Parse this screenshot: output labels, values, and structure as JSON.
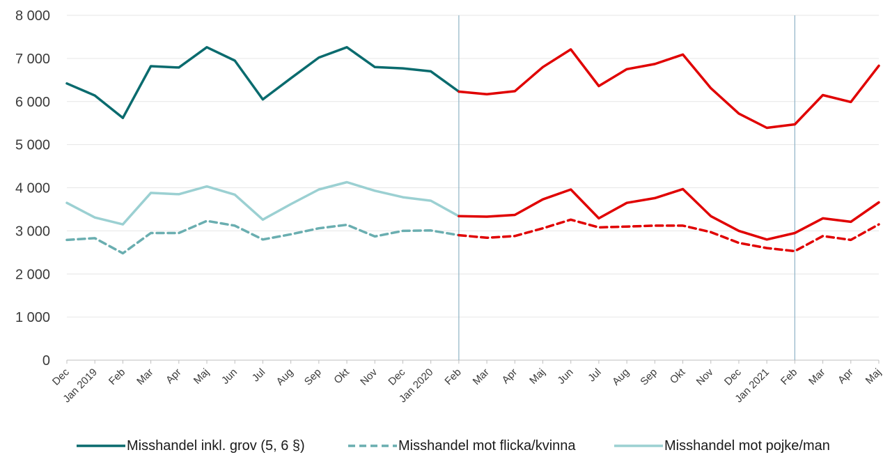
{
  "chart_data": {
    "type": "line",
    "categories": [
      "Dec",
      "Jan 2019",
      "Feb",
      "Mar",
      "Apr",
      "Maj",
      "Jun",
      "Jul",
      "Aug",
      "Sep",
      "Okt",
      "Nov",
      "Dec",
      "Jan 2020",
      "Feb",
      "Mar",
      "Apr",
      "Maj",
      "Jun",
      "Jul",
      "Aug",
      "Sep",
      "Okt",
      "Nov",
      "Dec",
      "Jan 2021",
      "Feb",
      "Mar",
      "Apr",
      "Maj"
    ],
    "ylim": [
      0,
      8000
    ],
    "yticks": [
      0,
      1000,
      2000,
      3000,
      4000,
      5000,
      6000,
      7000,
      8000
    ],
    "ytick_labels": [
      "0",
      "1 000",
      "2 000",
      "3 000",
      "4 000",
      "5 000",
      "6 000",
      "7 000",
      "8 000"
    ],
    "grid": true,
    "legend_position": "bottom",
    "highlight_color": "#e00000",
    "highlight_start_index": 14,
    "vertical_markers": [
      "Feb",
      "Feb"
    ],
    "series": [
      {
        "name": "Misshandel inkl. grov (5, 6 §)",
        "color": "#0a6b6e",
        "dash": "solid",
        "values": [
          6420,
          6140,
          5620,
          6820,
          6790,
          7260,
          6950,
          6050,
          6540,
          7020,
          7260,
          6800,
          6770,
          6700,
          6230,
          6170,
          6240,
          6800,
          7210,
          6360,
          6750,
          6870,
          7090,
          6310,
          5720,
          5390,
          5470,
          6150,
          5990,
          6830
        ]
      },
      {
        "name": "Misshandel mot flicka/kvinna",
        "color": "#6aaeb0",
        "dash": "dashed",
        "values": [
          2790,
          2830,
          2480,
          2950,
          2950,
          3230,
          3120,
          2800,
          2920,
          3060,
          3140,
          2870,
          3000,
          3010,
          2900,
          2840,
          2880,
          3060,
          3260,
          3080,
          3100,
          3120,
          3120,
          2970,
          2720,
          2600,
          2530,
          2880,
          2790,
          3150
        ]
      },
      {
        "name": "Misshandel mot pojke/man",
        "color": "#9bd0d2",
        "dash": "solid",
        "values": [
          3650,
          3310,
          3150,
          3880,
          3850,
          4030,
          3840,
          3260,
          3620,
          3960,
          4130,
          3930,
          3780,
          3700,
          3340,
          3330,
          3370,
          3730,
          3960,
          3290,
          3650,
          3760,
          3970,
          3340,
          3000,
          2800,
          2950,
          3290,
          3210,
          3660
        ]
      }
    ]
  }
}
